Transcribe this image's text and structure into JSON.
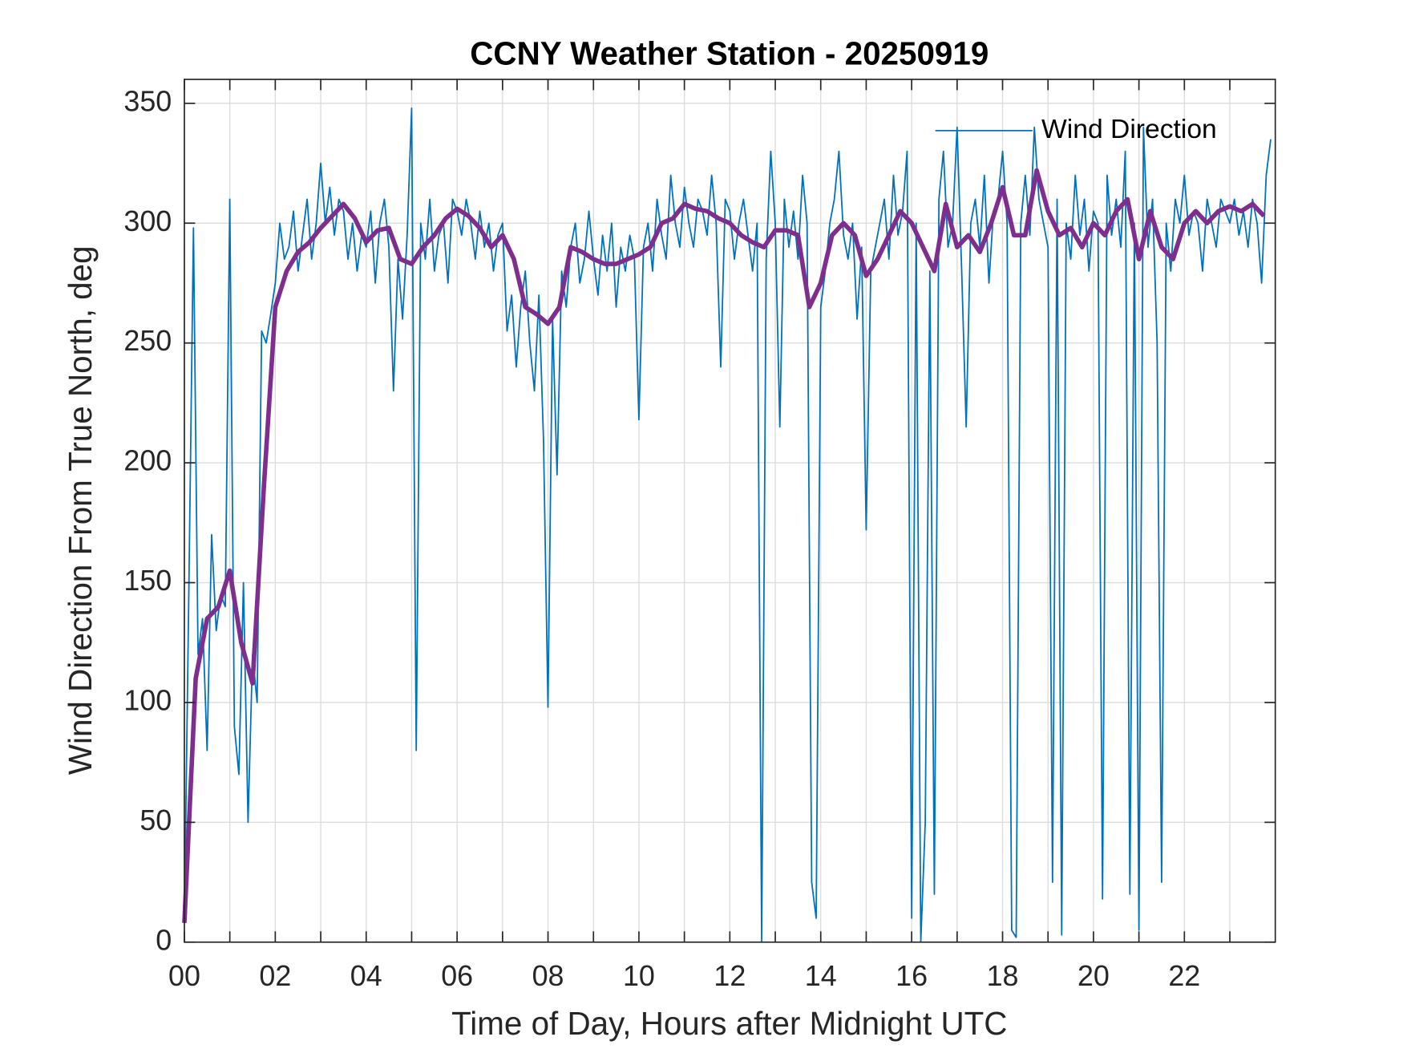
{
  "chart_data": {
    "type": "line",
    "title": "CCNY Weather Station - 20250919",
    "x_label": "Time of Day, Hours after Midnight UTC",
    "y_label": "Wind Direction From True North, deg",
    "xlim": [
      0,
      24
    ],
    "ylim": [
      0,
      360
    ],
    "xticks": [
      {
        "value": 0,
        "label": "00"
      },
      {
        "value": 2,
        "label": "02"
      },
      {
        "value": 4,
        "label": "04"
      },
      {
        "value": 6,
        "label": "06"
      },
      {
        "value": 8,
        "label": "08"
      },
      {
        "value": 10,
        "label": "10"
      },
      {
        "value": 12,
        "label": "12"
      },
      {
        "value": 14,
        "label": "14"
      },
      {
        "value": 16,
        "label": "16"
      },
      {
        "value": 18,
        "label": "18"
      },
      {
        "value": 20,
        "label": "20"
      },
      {
        "value": 22,
        "label": "22"
      }
    ],
    "xminorticks": [
      1,
      3,
      5,
      7,
      9,
      11,
      13,
      15,
      17,
      19,
      21,
      23
    ],
    "yticks": [
      0,
      50,
      100,
      150,
      200,
      250,
      300,
      350
    ],
    "grid": true,
    "legend": "upper right",
    "series": [
      {
        "name": "Wind Direction",
        "color": "#0072BD",
        "x": [
          0,
          0.1,
          0.2,
          0.3,
          0.4,
          0.5,
          0.6,
          0.7,
          0.8,
          0.9,
          1,
          1.1,
          1.2,
          1.3,
          1.4,
          1.5,
          1.6,
          1.7,
          1.8,
          1.9,
          2,
          2.1,
          2.2,
          2.3,
          2.4,
          2.5,
          2.6,
          2.7,
          2.8,
          2.9,
          3,
          3.1,
          3.2,
          3.3,
          3.4,
          3.5,
          3.6,
          3.7,
          3.8,
          3.9,
          4,
          4.1,
          4.2,
          4.3,
          4.4,
          4.5,
          4.6,
          4.7,
          4.8,
          4.9,
          5,
          5.1,
          5.2,
          5.3,
          5.4,
          5.5,
          5.6,
          5.7,
          5.8,
          5.9,
          6,
          6.1,
          6.2,
          6.3,
          6.4,
          6.5,
          6.6,
          6.7,
          6.8,
          6.9,
          7,
          7.1,
          7.2,
          7.3,
          7.4,
          7.5,
          7.6,
          7.7,
          7.8,
          7.9,
          8,
          8.1,
          8.2,
          8.3,
          8.4,
          8.5,
          8.6,
          8.7,
          8.8,
          8.9,
          9,
          9.1,
          9.2,
          9.3,
          9.4,
          9.5,
          9.6,
          9.7,
          9.8,
          9.9,
          10,
          10.1,
          10.2,
          10.3,
          10.4,
          10.5,
          10.6,
          10.7,
          10.8,
          10.9,
          11,
          11.1,
          11.2,
          11.3,
          11.4,
          11.5,
          11.6,
          11.7,
          11.8,
          11.9,
          12,
          12.1,
          12.2,
          12.3,
          12.4,
          12.5,
          12.6,
          12.7,
          12.8,
          12.9,
          13,
          13.1,
          13.2,
          13.3,
          13.4,
          13.5,
          13.6,
          13.7,
          13.8,
          13.9,
          14,
          14.1,
          14.2,
          14.3,
          14.4,
          14.5,
          14.6,
          14.7,
          14.8,
          14.9,
          15,
          15.1,
          15.2,
          15.3,
          15.4,
          15.5,
          15.6,
          15.7,
          15.8,
          15.9,
          16,
          16.1,
          16.2,
          16.3,
          16.4,
          16.5,
          16.6,
          16.7,
          16.8,
          16.9,
          17,
          17.1,
          17.2,
          17.3,
          17.4,
          17.5,
          17.6,
          17.7,
          17.8,
          17.9,
          18,
          18.1,
          18.2,
          18.3,
          18.4,
          18.5,
          18.6,
          18.7,
          18.8,
          18.9,
          19,
          19.1,
          19.2,
          19.3,
          19.4,
          19.5,
          19.6,
          19.7,
          19.8,
          19.9,
          20,
          20.1,
          20.2,
          20.3,
          20.4,
          20.5,
          20.6,
          20.7,
          20.8,
          20.9,
          21,
          21.1,
          21.2,
          21.3,
          21.4,
          21.5,
          21.6,
          21.7,
          21.8,
          21.9,
          22,
          22.1,
          22.2,
          22.3,
          22.4,
          22.5,
          22.6,
          22.7,
          22.8,
          22.9,
          23,
          23.1,
          23.2,
          23.3,
          23.4,
          23.5,
          23.6,
          23.7,
          23.8,
          23.9
        ],
        "values": [
          8,
          150,
          298,
          120,
          135,
          80,
          170,
          130,
          145,
          140,
          310,
          90,
          70,
          150,
          50,
          120,
          100,
          255,
          250,
          262,
          275,
          300,
          285,
          290,
          305,
          280,
          295,
          310,
          285,
          300,
          325,
          300,
          315,
          295,
          310,
          305,
          285,
          300,
          280,
          295,
          290,
          305,
          275,
          300,
          310,
          290,
          230,
          285,
          260,
          295,
          348,
          80,
          300,
          285,
          310,
          280,
          295,
          300,
          275,
          310,
          305,
          295,
          310,
          300,
          285,
          305,
          290,
          300,
          280,
          295,
          300,
          255,
          270,
          240,
          265,
          280,
          250,
          230,
          270,
          210,
          98,
          260,
          195,
          280,
          265,
          290,
          300,
          275,
          285,
          305,
          285,
          270,
          295,
          280,
          300,
          265,
          290,
          280,
          295,
          285,
          218,
          290,
          300,
          280,
          310,
          295,
          285,
          320,
          300,
          290,
          315,
          300,
          290,
          310,
          305,
          295,
          320,
          300,
          240,
          310,
          305,
          285,
          300,
          310,
          295,
          280,
          300,
          0,
          285,
          330,
          300,
          215,
          310,
          290,
          305,
          285,
          320,
          300,
          25,
          10,
          265,
          280,
          300,
          310,
          330,
          295,
          285,
          300,
          260,
          290,
          172,
          280,
          290,
          300,
          310,
          285,
          320,
          295,
          305,
          330,
          10,
          300,
          0,
          50,
          280,
          20,
          310,
          330,
          290,
          300,
          340,
          280,
          215,
          300,
          310,
          290,
          320,
          275,
          305,
          310,
          330,
          300,
          5,
          2,
          300,
          320,
          295,
          340,
          310,
          300,
          290,
          25,
          310,
          3,
          300,
          285,
          320,
          295,
          310,
          280,
          305,
          300,
          18,
          320,
          295,
          310,
          290,
          330,
          20,
          300,
          5,
          340,
          290,
          310,
          250,
          25,
          300,
          280,
          310,
          300,
          320,
          295,
          305,
          300,
          280,
          310,
          300,
          290,
          310,
          305,
          300,
          310,
          295,
          305,
          290,
          310,
          300,
          275,
          320,
          335
        ]
      },
      {
        "color": "#7E2F8E",
        "x": [
          0,
          0.25,
          0.5,
          0.75,
          1,
          1.25,
          1.5,
          1.75,
          2,
          2.25,
          2.5,
          2.75,
          3,
          3.25,
          3.5,
          3.75,
          4,
          4.25,
          4.5,
          4.75,
          5,
          5.25,
          5.5,
          5.75,
          6,
          6.25,
          6.5,
          6.75,
          7,
          7.25,
          7.5,
          7.75,
          8,
          8.25,
          8.5,
          8.75,
          9,
          9.25,
          9.5,
          9.75,
          10,
          10.25,
          10.5,
          10.75,
          11,
          11.25,
          11.5,
          11.75,
          12,
          12.25,
          12.5,
          12.75,
          13,
          13.25,
          13.5,
          13.75,
          14,
          14.25,
          14.5,
          14.75,
          15,
          15.25,
          15.5,
          15.75,
          16,
          16.25,
          16.5,
          16.75,
          17,
          17.25,
          17.5,
          17.75,
          18,
          18.25,
          18.5,
          18.75,
          19,
          19.25,
          19.5,
          19.75,
          20,
          20.25,
          20.5,
          20.75,
          21,
          21.25,
          21.5,
          21.75,
          22,
          22.25,
          22.5,
          22.75,
          23,
          23.25,
          23.5,
          23.75
        ],
        "values": [
          8,
          110,
          135,
          140,
          155,
          125,
          108,
          190,
          265,
          280,
          288,
          292,
          298,
          303,
          308,
          302,
          292,
          297,
          298,
          285,
          283,
          290,
          295,
          302,
          306,
          303,
          298,
          290,
          295,
          285,
          265,
          262,
          258,
          265,
          290,
          288,
          285,
          283,
          283,
          285,
          287,
          290,
          300,
          302,
          308,
          306,
          305,
          302,
          300,
          295,
          292,
          290,
          297,
          297,
          295,
          265,
          275,
          295,
          300,
          295,
          278,
          285,
          295,
          305,
          300,
          290,
          280,
          308,
          290,
          295,
          288,
          300,
          315,
          295,
          295,
          322,
          305,
          295,
          298,
          290,
          300,
          295,
          305,
          310,
          285,
          305,
          290,
          285,
          300,
          305,
          300,
          305,
          307,
          305,
          308,
          303
        ]
      }
    ]
  }
}
